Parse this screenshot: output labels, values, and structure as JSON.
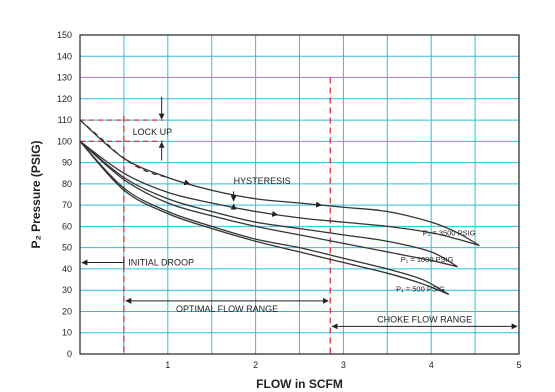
{
  "chart_data": {
    "type": "line",
    "xlabel": "FLOW in SCFM",
    "ylabel": "P₂ Pressure (PSIG)",
    "xlim": [
      0,
      5
    ],
    "ylim": [
      0,
      150
    ],
    "x_ticks": [
      "1",
      "2",
      "3",
      "4",
      "5"
    ],
    "y_ticks": [
      "0",
      "10",
      "20",
      "30",
      "40",
      "50",
      "60",
      "70",
      "80",
      "90",
      "100",
      "110",
      "120",
      "130",
      "140",
      "150"
    ],
    "grid": true,
    "colors": {
      "grid": "#2ec0d8",
      "curve": "#333333",
      "guide": "#e0202a",
      "frame": "#222222"
    },
    "series": [
      {
        "name": "P₁ = 3500 PSIG",
        "upper": [
          [
            0,
            110
          ],
          [
            0.5,
            92
          ],
          [
            1,
            83
          ],
          [
            1.5,
            77
          ],
          [
            2,
            73
          ],
          [
            2.5,
            71
          ],
          [
            3,
            69
          ],
          [
            3.5,
            67
          ],
          [
            4,
            62
          ],
          [
            4.3,
            57
          ],
          [
            4.55,
            51
          ]
        ],
        "lower": [
          [
            0,
            100
          ],
          [
            0.5,
            85
          ],
          [
            1,
            76
          ],
          [
            1.5,
            71
          ],
          [
            2,
            67
          ],
          [
            2.5,
            64
          ],
          [
            3,
            62
          ],
          [
            3.5,
            60
          ],
          [
            4,
            57
          ],
          [
            4.3,
            54
          ],
          [
            4.55,
            51
          ]
        ]
      },
      {
        "name": "P₁ = 1000 PSIG",
        "upper": [
          [
            0,
            100
          ],
          [
            0.5,
            83
          ],
          [
            1,
            73
          ],
          [
            1.5,
            67
          ],
          [
            2,
            62
          ],
          [
            2.5,
            59
          ],
          [
            3,
            56
          ],
          [
            3.5,
            53
          ],
          [
            4,
            48
          ],
          [
            4.3,
            41
          ]
        ],
        "lower": [
          [
            0,
            100
          ],
          [
            0.5,
            82
          ],
          [
            1,
            71
          ],
          [
            1.5,
            65
          ],
          [
            2,
            60
          ],
          [
            2.5,
            56
          ],
          [
            3,
            52
          ],
          [
            3.5,
            48
          ],
          [
            4,
            44
          ],
          [
            4.3,
            41
          ]
        ]
      },
      {
        "name": "P₁ = 500 PSIG",
        "upper": [
          [
            0,
            100
          ],
          [
            0.5,
            78
          ],
          [
            1,
            67
          ],
          [
            1.5,
            60
          ],
          [
            2,
            54
          ],
          [
            2.5,
            50
          ],
          [
            3,
            45
          ],
          [
            3.5,
            40
          ],
          [
            3.9,
            35
          ],
          [
            4.2,
            28
          ]
        ],
        "lower": [
          [
            0,
            100
          ],
          [
            0.5,
            77
          ],
          [
            1,
            66
          ],
          [
            1.5,
            59
          ],
          [
            2,
            53
          ],
          [
            2.5,
            48
          ],
          [
            3,
            43
          ],
          [
            3.5,
            38
          ],
          [
            3.9,
            33
          ],
          [
            4.2,
            28
          ]
        ]
      }
    ],
    "dashed_curve": [
      [
        0,
        110
      ],
      [
        0.25,
        101
      ],
      [
        0.5,
        92
      ],
      [
        0.75,
        86
      ],
      [
        1,
        83
      ]
    ],
    "annotations": {
      "lock_up": "LOCK UP",
      "hysteresis": "HYSTERESIS",
      "initial_droop": "INITIAL DROOP",
      "optimal_flow_range": "OPTIMAL FLOW RANGE",
      "choke_flow_range": "CHOKE FLOW RANGE"
    },
    "regions": {
      "optimal_flow_range_x": [
        0.5,
        2.85
      ],
      "choke_flow_start_x": 2.85,
      "lock_up_range_y": [
        100,
        110
      ]
    }
  }
}
